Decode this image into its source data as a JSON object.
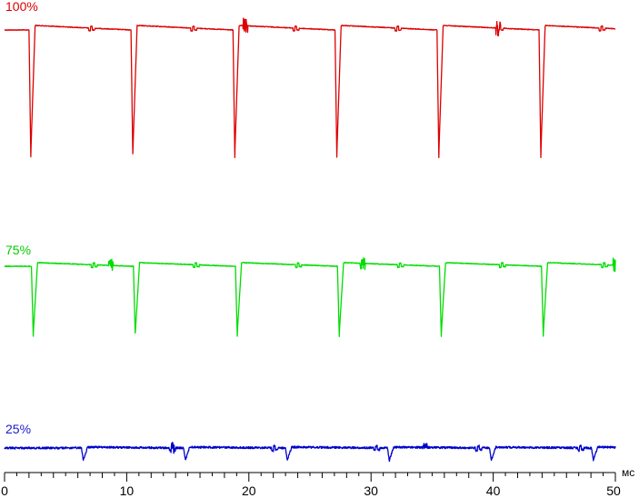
{
  "chart_data": {
    "type": "line",
    "xlabel": "мс",
    "xlim": [
      0,
      50
    ],
    "xticks": [
      0,
      10,
      20,
      30,
      40,
      50
    ],
    "xtick_labels": [
      "0",
      "10",
      "20",
      "30",
      "40",
      "50"
    ],
    "minor_tick_step": 1,
    "grid": false,
    "legend": "none",
    "series": [
      {
        "name": "100%",
        "color": "#dd0000",
        "period_ms": 8.35,
        "first_pulse_ms": 2.0,
        "pulse_depth": 1.0,
        "noise_bursts_ms": [
          19.7,
          40.4
        ],
        "minor_glitch_offset_ms": 4.9
      },
      {
        "name": "75%",
        "color": "#00dd00",
        "period_ms": 8.35,
        "first_pulse_ms": 2.2,
        "pulse_depth": 0.55,
        "noise_bursts_ms": [
          8.7,
          29.3,
          50.0
        ],
        "minor_glitch_offset_ms": 4.9
      },
      {
        "name": "25%",
        "color": "#0000cc",
        "period_ms": 8.35,
        "first_pulse_ms": 6.3,
        "pulse_depth": 0.07,
        "noise_bursts_ms": [
          13.8,
          34.4
        ],
        "minor_glitch_offset_ms": 7.2
      }
    ]
  }
}
